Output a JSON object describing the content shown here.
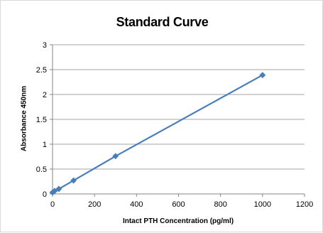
{
  "chart_data": {
    "type": "scatter",
    "title": "Standard Curve",
    "xlabel": "Intact PTH Concentration (pg/ml)",
    "ylabel": "Absorbance 450nm",
    "xlim": [
      0,
      1200
    ],
    "ylim": [
      0,
      3
    ],
    "xticks": [
      0,
      200,
      400,
      600,
      800,
      1000,
      1200
    ],
    "yticks": [
      0,
      0.5,
      1,
      1.5,
      2,
      2.5,
      3
    ],
    "xtick_labels": [
      "0",
      "200",
      "400",
      "600",
      "800",
      "1000",
      "1200"
    ],
    "ytick_labels": [
      "0",
      "0.5",
      "1",
      "1.5",
      "2",
      "2.5",
      "3"
    ],
    "grid": "horizontal",
    "legend": "none",
    "series": [
      {
        "x": [
          0,
          10,
          30,
          100,
          300,
          1000
        ],
        "y": [
          0.03,
          0.06,
          0.1,
          0.27,
          0.76,
          2.39
        ],
        "color": "#4a7ebb",
        "marker": "diamond",
        "line": "straight"
      }
    ]
  }
}
